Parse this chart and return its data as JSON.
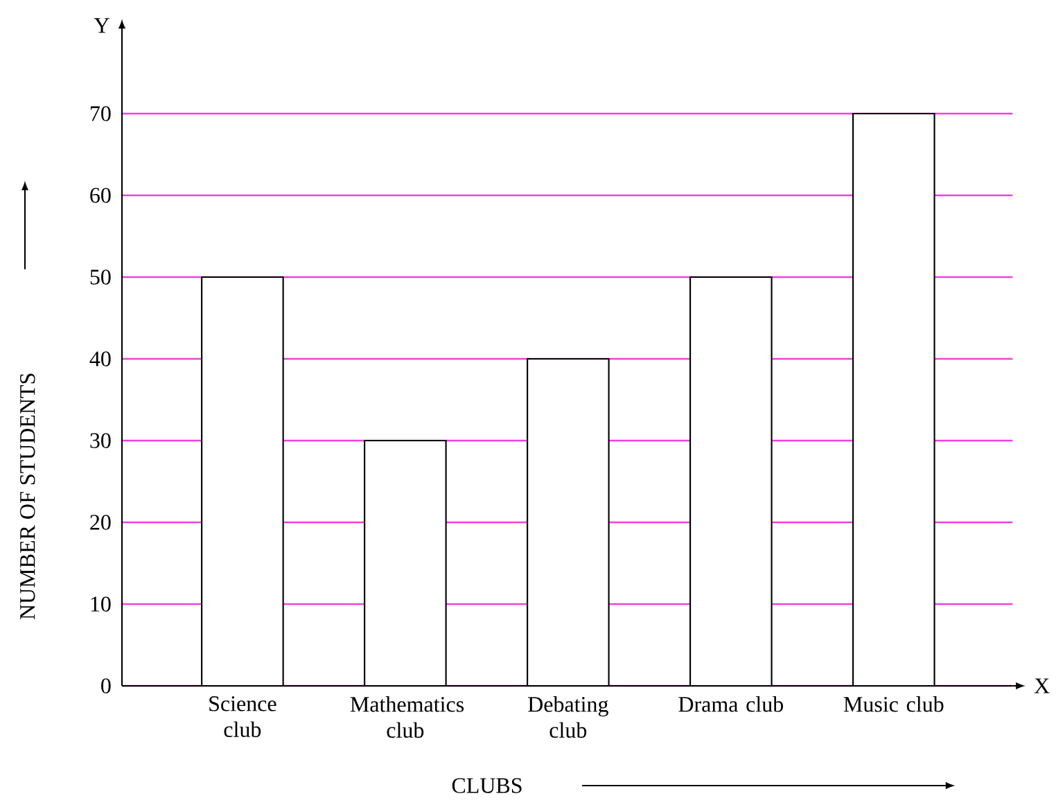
{
  "chart_data": {
    "type": "bar",
    "xlabel": "CLUBS",
    "ylabel": "NUMBER OF STUDENTS",
    "categories": [
      "Science club",
      "Mathematics club",
      "Debating club",
      "Drama club",
      "Music club"
    ],
    "values": [
      50,
      30,
      40,
      50,
      70
    ],
    "color": "#ffffff",
    "ylim": [
      0,
      80
    ],
    "yticks": [
      0,
      10,
      20,
      30,
      40,
      50,
      60,
      70
    ],
    "grid": "y",
    "annotations": [
      "X",
      "Y"
    ]
  }
}
